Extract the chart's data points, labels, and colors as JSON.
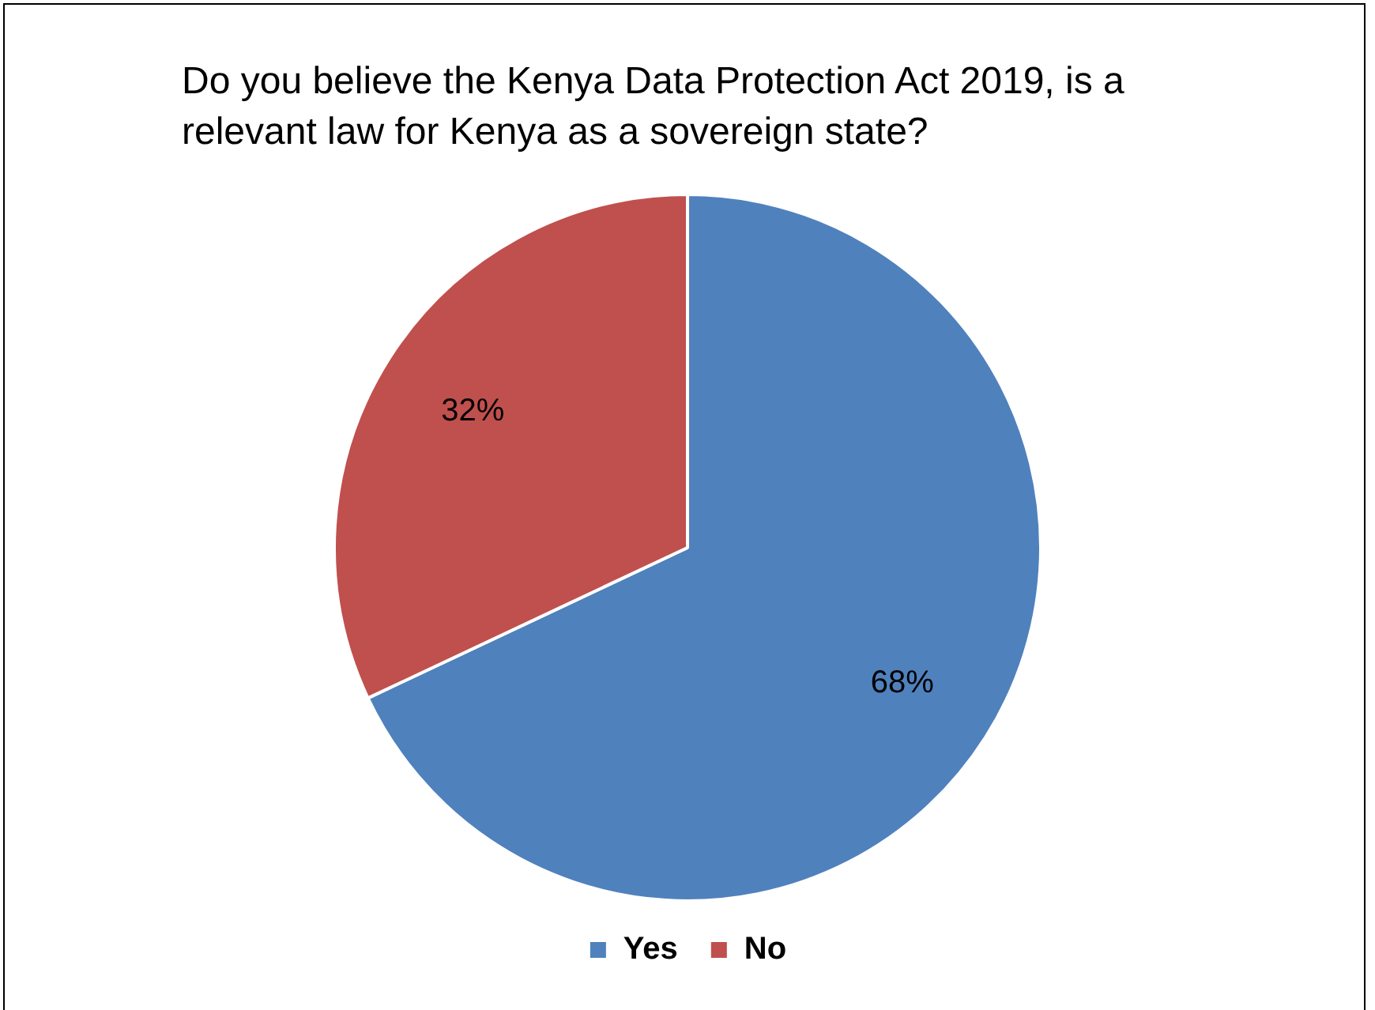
{
  "chart_data": {
    "type": "pie",
    "title": "Do you believe the Kenya Data Protection Act 2019, is a relevant law for Kenya as a sovereign state?",
    "categories": [
      "Yes",
      "No"
    ],
    "values": [
      68,
      32
    ],
    "colors": [
      "#4f81bd",
      "#c0504d"
    ],
    "value_labels": [
      "68%",
      "32%"
    ],
    "legend": "bottom"
  }
}
